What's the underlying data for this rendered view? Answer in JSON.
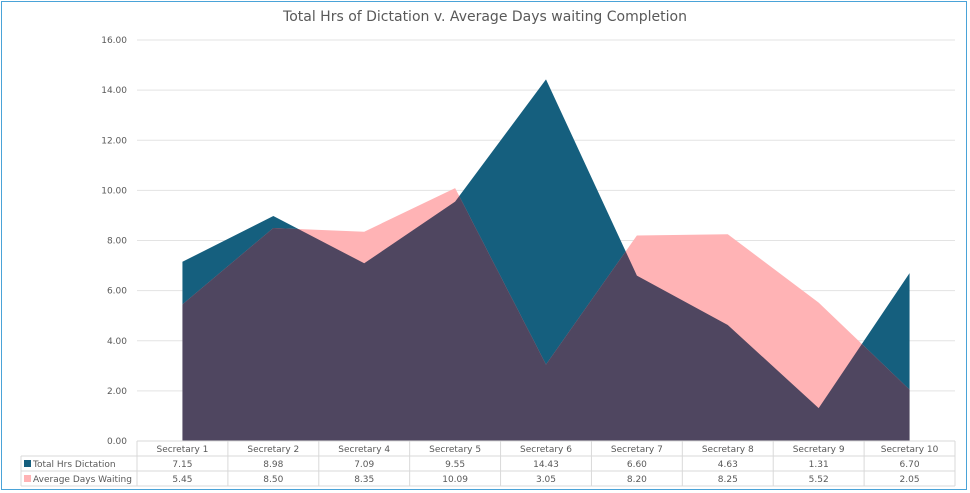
{
  "chart_data": {
    "type": "area",
    "title": "Total Hrs of Dictation v. Average Days waiting Completion",
    "xlabel": "",
    "ylabel": "",
    "ylim": [
      0,
      16
    ],
    "yticks": [
      "0.00",
      "2.00",
      "4.00",
      "6.00",
      "8.00",
      "10.00",
      "12.00",
      "14.00",
      "16.00"
    ],
    "grid": true,
    "legend": "data-table-left",
    "categories": [
      "Secretary 1",
      "Secretary 2",
      "Secretary 4",
      "Secretary 5",
      "Secretary 6",
      "Secretary 7",
      "Secretary 8",
      "Secretary 9",
      "Secretary 10"
    ],
    "series": [
      {
        "name": "Total Hrs Dictation",
        "color": "#155f7e",
        "values": [
          7.15,
          8.98,
          7.09,
          9.55,
          14.43,
          6.6,
          4.63,
          1.31,
          6.7
        ],
        "labels": [
          "7.15",
          "8.98",
          "7.09",
          "9.55",
          "14.43",
          "6.60",
          "4.63",
          "1.31",
          "6.70"
        ]
      },
      {
        "name": "Average Days Waiting",
        "color": "#ffb3b5",
        "values": [
          5.45,
          8.5,
          8.35,
          10.09,
          3.05,
          8.2,
          8.25,
          5.52,
          2.05
        ],
        "labels": [
          "5.45",
          "8.50",
          "8.35",
          "10.09",
          "3.05",
          "8.20",
          "8.25",
          "5.52",
          "2.05"
        ]
      }
    ],
    "overlap_color": "#4f4660"
  }
}
